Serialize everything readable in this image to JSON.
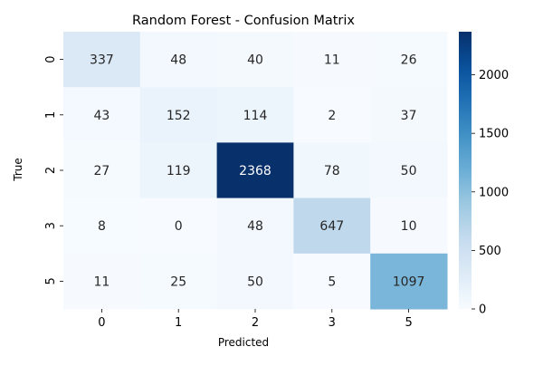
{
  "chart_data": {
    "type": "heatmap",
    "title": "Random Forest - Confusion Matrix",
    "xlabel": "Predicted",
    "ylabel": "True",
    "x_categories": [
      "0",
      "1",
      "2",
      "3",
      "5"
    ],
    "y_categories": [
      "0",
      "1",
      "2",
      "3",
      "5"
    ],
    "values": [
      [
        337,
        48,
        40,
        11,
        26
      ],
      [
        43,
        152,
        114,
        2,
        37
      ],
      [
        27,
        119,
        2368,
        78,
        50
      ],
      [
        8,
        0,
        48,
        647,
        10
      ],
      [
        11,
        25,
        50,
        5,
        1097
      ]
    ],
    "colormap": "Blues",
    "colorbar": {
      "min": 0,
      "max": 2368,
      "ticks": [
        0,
        500,
        1000,
        1500,
        2000
      ]
    },
    "annotations": true
  }
}
